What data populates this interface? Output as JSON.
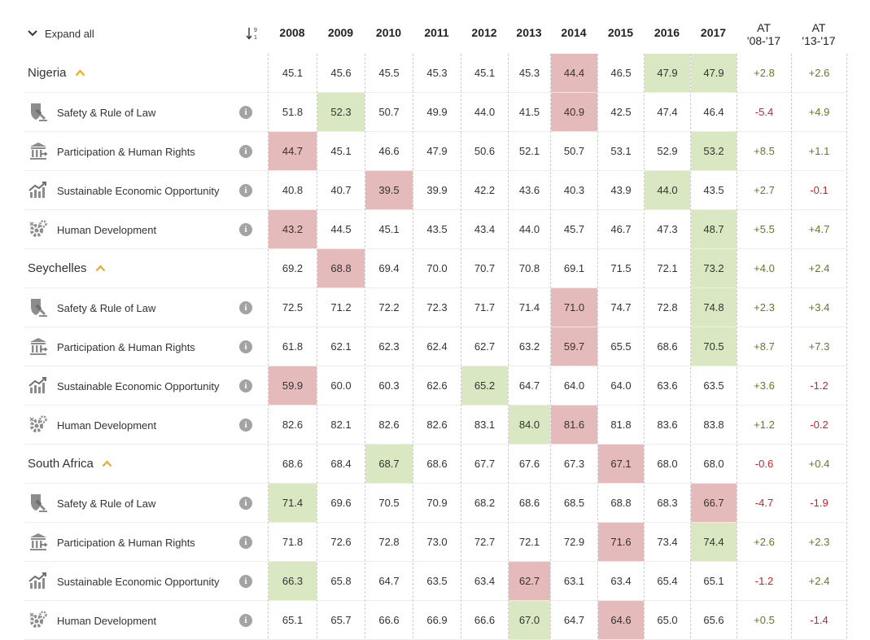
{
  "header": {
    "expand_label": "Expand all",
    "years": [
      "2008",
      "2009",
      "2010",
      "2011",
      "2012",
      "2013",
      "2014",
      "2015",
      "2016",
      "2017"
    ],
    "at_cols": [
      {
        "line1": "AT",
        "line2": "'08-'17"
      },
      {
        "line1": "AT",
        "line2": "'13-'17"
      }
    ]
  },
  "colors": {
    "low": "#e5babb",
    "high": "#d9e8c3",
    "positive": "#5f7d1e",
    "negative": "#d0202a",
    "accent": "#f5a623"
  },
  "rows": [
    {
      "type": "country",
      "name": "Nigeria",
      "values": [
        "45.1",
        "45.6",
        "45.5",
        "45.3",
        "45.1",
        "45.3",
        "44.4",
        "46.5",
        "47.9",
        "47.9"
      ],
      "at": [
        "+2.8",
        "+2.6"
      ],
      "hl": [
        "",
        "",
        "",
        "",
        "",
        "",
        "r",
        "",
        "g",
        "g"
      ]
    },
    {
      "type": "indicator",
      "icon": "safety-rule-of-law-icon",
      "name": "Safety & Rule of Law",
      "values": [
        "51.8",
        "52.3",
        "50.7",
        "49.9",
        "44.0",
        "41.5",
        "40.9",
        "42.5",
        "47.4",
        "46.4"
      ],
      "at": [
        "-5.4",
        "+4.9"
      ],
      "hl": [
        "",
        "g",
        "",
        "",
        "",
        "",
        "r",
        "",
        "",
        ""
      ]
    },
    {
      "type": "indicator",
      "icon": "participation-human-rights-icon",
      "name": "Participation & Human Rights",
      "values": [
        "44.7",
        "45.1",
        "46.6",
        "47.9",
        "50.6",
        "52.1",
        "50.7",
        "53.1",
        "52.9",
        "53.2"
      ],
      "at": [
        "+8.5",
        "+1.1"
      ],
      "hl": [
        "r",
        "",
        "",
        "",
        "",
        "",
        "",
        "",
        "",
        "g"
      ]
    },
    {
      "type": "indicator",
      "icon": "sustainable-economic-opportunity-icon",
      "name": "Sustainable Economic Opportunity",
      "values": [
        "40.8",
        "40.7",
        "39.5",
        "39.9",
        "42.2",
        "43.6",
        "40.3",
        "43.9",
        "44.0",
        "43.5"
      ],
      "at": [
        "+2.7",
        "-0.1"
      ],
      "hl": [
        "",
        "",
        "r",
        "",
        "",
        "",
        "",
        "",
        "g",
        ""
      ]
    },
    {
      "type": "indicator",
      "icon": "human-development-icon",
      "name": "Human Development",
      "values": [
        "43.2",
        "44.5",
        "45.1",
        "43.5",
        "43.4",
        "44.0",
        "45.7",
        "46.7",
        "47.3",
        "48.7"
      ],
      "at": [
        "+5.5",
        "+4.7"
      ],
      "hl": [
        "r",
        "",
        "",
        "",
        "",
        "",
        "",
        "",
        "",
        "g"
      ]
    },
    {
      "type": "country",
      "name": "Seychelles",
      "values": [
        "69.2",
        "68.8",
        "69.4",
        "70.0",
        "70.7",
        "70.8",
        "69.1",
        "71.5",
        "72.1",
        "73.2"
      ],
      "at": [
        "+4.0",
        "+2.4"
      ],
      "hl": [
        "",
        "r",
        "",
        "",
        "",
        "",
        "",
        "",
        "",
        "g"
      ]
    },
    {
      "type": "indicator",
      "icon": "safety-rule-of-law-icon",
      "name": "Safety & Rule of Law",
      "values": [
        "72.5",
        "71.2",
        "72.2",
        "72.3",
        "71.7",
        "71.4",
        "71.0",
        "74.7",
        "72.8",
        "74.8"
      ],
      "at": [
        "+2.3",
        "+3.4"
      ],
      "hl": [
        "",
        "",
        "",
        "",
        "",
        "",
        "r",
        "",
        "",
        "g"
      ]
    },
    {
      "type": "indicator",
      "icon": "participation-human-rights-icon",
      "name": "Participation & Human Rights",
      "values": [
        "61.8",
        "62.1",
        "62.3",
        "62.4",
        "62.7",
        "63.2",
        "59.7",
        "65.5",
        "68.6",
        "70.5"
      ],
      "at": [
        "+8.7",
        "+7.3"
      ],
      "hl": [
        "",
        "",
        "",
        "",
        "",
        "",
        "r",
        "",
        "",
        "g"
      ]
    },
    {
      "type": "indicator",
      "icon": "sustainable-economic-opportunity-icon",
      "name": "Sustainable Economic Opportunity",
      "values": [
        "59.9",
        "60.0",
        "60.3",
        "62.6",
        "65.2",
        "64.7",
        "64.0",
        "64.0",
        "63.6",
        "63.5"
      ],
      "at": [
        "+3.6",
        "-1.2"
      ],
      "hl": [
        "r",
        "",
        "",
        "",
        "g",
        "",
        "",
        "",
        "",
        ""
      ]
    },
    {
      "type": "indicator",
      "icon": "human-development-icon",
      "name": "Human Development",
      "values": [
        "82.6",
        "82.1",
        "82.6",
        "82.6",
        "83.1",
        "84.0",
        "81.6",
        "81.8",
        "83.6",
        "83.8"
      ],
      "at": [
        "+1.2",
        "-0.2"
      ],
      "hl": [
        "",
        "",
        "",
        "",
        "",
        "g",
        "r",
        "",
        "",
        ""
      ]
    },
    {
      "type": "country",
      "name": "South Africa",
      "values": [
        "68.6",
        "68.4",
        "68.7",
        "68.6",
        "67.7",
        "67.6",
        "67.3",
        "67.1",
        "68.0",
        "68.0"
      ],
      "at": [
        "-0.6",
        "+0.4"
      ],
      "hl": [
        "",
        "",
        "g",
        "",
        "",
        "",
        "",
        "r",
        "",
        ""
      ]
    },
    {
      "type": "indicator",
      "icon": "safety-rule-of-law-icon",
      "name": "Safety & Rule of Law",
      "values": [
        "71.4",
        "69.6",
        "70.5",
        "70.9",
        "68.2",
        "68.6",
        "68.5",
        "68.8",
        "68.3",
        "66.7"
      ],
      "at": [
        "-4.7",
        "-1.9"
      ],
      "hl": [
        "g",
        "",
        "",
        "",
        "",
        "",
        "",
        "",
        "",
        "r"
      ]
    },
    {
      "type": "indicator",
      "icon": "participation-human-rights-icon",
      "name": "Participation & Human Rights",
      "values": [
        "71.8",
        "72.6",
        "72.8",
        "73.0",
        "72.7",
        "72.1",
        "72.9",
        "71.6",
        "73.4",
        "74.4"
      ],
      "at": [
        "+2.6",
        "+2.3"
      ],
      "hl": [
        "",
        "",
        "",
        "",
        "",
        "",
        "",
        "r",
        "",
        "g"
      ]
    },
    {
      "type": "indicator",
      "icon": "sustainable-economic-opportunity-icon",
      "name": "Sustainable Economic Opportunity",
      "values": [
        "66.3",
        "65.8",
        "64.7",
        "63.5",
        "63.4",
        "62.7",
        "63.1",
        "63.4",
        "65.4",
        "65.1"
      ],
      "at": [
        "-1.2",
        "+2.4"
      ],
      "hl": [
        "g",
        "",
        "",
        "",
        "",
        "r",
        "",
        "",
        "",
        ""
      ]
    },
    {
      "type": "indicator",
      "icon": "human-development-icon",
      "name": "Human Development",
      "values": [
        "65.1",
        "65.7",
        "66.6",
        "66.9",
        "66.6",
        "67.0",
        "64.7",
        "64.6",
        "65.0",
        "65.6"
      ],
      "at": [
        "+0.5",
        "-1.4"
      ],
      "hl": [
        "",
        "",
        "",
        "",
        "",
        "g",
        "",
        "r",
        "",
        ""
      ]
    }
  ]
}
